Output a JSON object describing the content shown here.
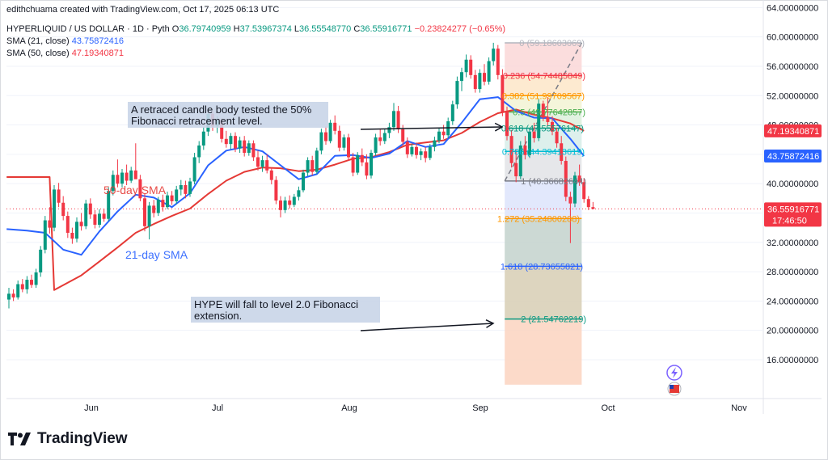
{
  "header": {
    "credit": "edithchuama created with TradingView.com, Oct 17, 2025 06:13 UTC",
    "symbol": "HYPERLIQUID / US DOLLAR · 1D · Pyth",
    "ohlc": {
      "o_label": "O",
      "o": "36.79740959",
      "h_label": "H",
      "h": "37.53967374",
      "l_label": "L",
      "l": "36.55548770",
      "c_label": "C",
      "c": "36.55916771",
      "change": "−0.23824277 (−0.65%)"
    },
    "sma21": {
      "label": "SMA (21, close)",
      "value": "43.75872416"
    },
    "sma50": {
      "label": "SMA (50, close)",
      "value": "47.19340871"
    }
  },
  "brand": {
    "name": "TradingView"
  },
  "colors": {
    "up": "#089981",
    "down": "#f23645",
    "sma21": "#2962ff",
    "sma50": "#e53935"
  },
  "chart_data": {
    "type": "candlestick",
    "y_range": [
      12,
      64
    ],
    "y_ticks": [
      "64.00000000",
      "60.00000000",
      "56.00000000",
      "52.00000000",
      "48.00000000",
      "44.00000000",
      "40.00000000",
      "36.00000000",
      "32.00000000",
      "28.00000000",
      "24.00000000",
      "20.00000000",
      "16.00000000"
    ],
    "x_ticks": [
      "Jun",
      "Jul",
      "Aug",
      "Sep",
      "Oct",
      "Nov"
    ],
    "price_tags": [
      {
        "text": "47.19340871",
        "price": 47.19,
        "color": "#f23645"
      },
      {
        "text": "43.75872416",
        "price": 43.76,
        "color": "#2962ff"
      },
      {
        "text": "36.55916771",
        "sub": "17:46:50",
        "price": 36.56,
        "color": "#f23645"
      }
    ],
    "close_price": 36.56,
    "candles": [
      {
        "o": 24.2,
        "h": 25.8,
        "l": 23.0,
        "c": 25.0
      },
      {
        "o": 25.0,
        "h": 25.6,
        "l": 24.0,
        "c": 24.5
      },
      {
        "o": 24.5,
        "h": 26.8,
        "l": 24.2,
        "c": 26.3
      },
      {
        "o": 26.3,
        "h": 27.0,
        "l": 25.2,
        "c": 25.6
      },
      {
        "o": 25.6,
        "h": 27.4,
        "l": 25.0,
        "c": 26.9
      },
      {
        "o": 26.9,
        "h": 27.6,
        "l": 25.8,
        "c": 26.2
      },
      {
        "o": 26.2,
        "h": 28.4,
        "l": 25.8,
        "c": 27.9
      },
      {
        "o": 27.9,
        "h": 31.5,
        "l": 27.3,
        "c": 31.0
      },
      {
        "o": 31.0,
        "h": 35.6,
        "l": 30.5,
        "c": 35.0
      },
      {
        "o": 35.0,
        "h": 36.8,
        "l": 33.2,
        "c": 34.0
      },
      {
        "o": 34.0,
        "h": 39.8,
        "l": 33.5,
        "c": 39.2
      },
      {
        "o": 39.2,
        "h": 40.1,
        "l": 36.8,
        "c": 37.4
      },
      {
        "o": 37.4,
        "h": 38.3,
        "l": 35.0,
        "c": 35.6
      },
      {
        "o": 35.6,
        "h": 36.2,
        "l": 32.6,
        "c": 33.3
      },
      {
        "o": 33.3,
        "h": 34.0,
        "l": 31.8,
        "c": 32.5
      },
      {
        "o": 32.5,
        "h": 35.4,
        "l": 32.0,
        "c": 34.8
      },
      {
        "o": 34.8,
        "h": 36.0,
        "l": 33.6,
        "c": 34.2
      },
      {
        "o": 34.2,
        "h": 37.8,
        "l": 33.8,
        "c": 37.3
      },
      {
        "o": 37.3,
        "h": 38.0,
        "l": 35.2,
        "c": 35.8
      },
      {
        "o": 35.8,
        "h": 36.4,
        "l": 33.9,
        "c": 34.4
      },
      {
        "o": 34.4,
        "h": 36.5,
        "l": 34.0,
        "c": 35.9
      },
      {
        "o": 35.9,
        "h": 36.6,
        "l": 34.8,
        "c": 35.2
      },
      {
        "o": 35.2,
        "h": 39.5,
        "l": 34.9,
        "c": 39.0
      },
      {
        "o": 39.0,
        "h": 41.8,
        "l": 38.4,
        "c": 41.2
      },
      {
        "o": 41.2,
        "h": 43.3,
        "l": 39.5,
        "c": 40.0
      },
      {
        "o": 40.0,
        "h": 42.0,
        "l": 39.5,
        "c": 41.5
      },
      {
        "o": 41.5,
        "h": 42.6,
        "l": 39.8,
        "c": 40.4
      },
      {
        "o": 40.4,
        "h": 42.3,
        "l": 40.1,
        "c": 41.8
      },
      {
        "o": 41.8,
        "h": 45.5,
        "l": 41.0,
        "c": 40.6
      },
      {
        "o": 40.6,
        "h": 41.2,
        "l": 37.6,
        "c": 38.0
      },
      {
        "o": 38.0,
        "h": 38.6,
        "l": 33.5,
        "c": 34.2
      },
      {
        "o": 34.2,
        "h": 37.5,
        "l": 32.4,
        "c": 37.0
      },
      {
        "o": 37.0,
        "h": 37.8,
        "l": 35.4,
        "c": 36.0
      },
      {
        "o": 36.0,
        "h": 38.2,
        "l": 35.6,
        "c": 37.8
      },
      {
        "o": 37.8,
        "h": 38.5,
        "l": 36.2,
        "c": 36.8
      },
      {
        "o": 36.8,
        "h": 38.9,
        "l": 36.5,
        "c": 38.4
      },
      {
        "o": 38.4,
        "h": 39.0,
        "l": 37.1,
        "c": 37.6
      },
      {
        "o": 37.6,
        "h": 39.7,
        "l": 37.2,
        "c": 39.2
      },
      {
        "o": 39.2,
        "h": 40.5,
        "l": 38.4,
        "c": 39.8
      },
      {
        "o": 39.8,
        "h": 40.4,
        "l": 38.0,
        "c": 38.6
      },
      {
        "o": 38.6,
        "h": 40.8,
        "l": 38.2,
        "c": 40.3
      },
      {
        "o": 40.3,
        "h": 44.2,
        "l": 39.9,
        "c": 43.6
      },
      {
        "o": 43.6,
        "h": 45.8,
        "l": 42.8,
        "c": 45.2
      },
      {
        "o": 45.2,
        "h": 47.7,
        "l": 44.6,
        "c": 47.1
      },
      {
        "o": 47.1,
        "h": 50.0,
        "l": 46.5,
        "c": 49.5
      },
      {
        "o": 49.5,
        "h": 49.9,
        "l": 47.2,
        "c": 47.8
      },
      {
        "o": 47.8,
        "h": 49.2,
        "l": 46.9,
        "c": 48.6
      },
      {
        "o": 48.6,
        "h": 48.9,
        "l": 45.6,
        "c": 46.1
      },
      {
        "o": 46.1,
        "h": 47.2,
        "l": 44.9,
        "c": 45.4
      },
      {
        "o": 45.4,
        "h": 46.9,
        "l": 44.7,
        "c": 46.5
      },
      {
        "o": 46.5,
        "h": 47.0,
        "l": 44.3,
        "c": 44.8
      },
      {
        "o": 44.8,
        "h": 46.4,
        "l": 44.2,
        "c": 45.9
      },
      {
        "o": 45.9,
        "h": 46.5,
        "l": 43.7,
        "c": 44.2
      },
      {
        "o": 44.2,
        "h": 45.9,
        "l": 43.8,
        "c": 45.5
      },
      {
        "o": 45.5,
        "h": 45.9,
        "l": 43.1,
        "c": 43.6
      },
      {
        "o": 43.6,
        "h": 44.5,
        "l": 41.8,
        "c": 42.3
      },
      {
        "o": 42.3,
        "h": 43.8,
        "l": 41.6,
        "c": 43.2
      },
      {
        "o": 43.2,
        "h": 44.0,
        "l": 41.4,
        "c": 41.8
      },
      {
        "o": 41.8,
        "h": 42.2,
        "l": 39.9,
        "c": 40.5
      },
      {
        "o": 40.5,
        "h": 41.0,
        "l": 37.2,
        "c": 37.7
      },
      {
        "o": 37.7,
        "h": 38.3,
        "l": 35.4,
        "c": 36.4
      },
      {
        "o": 36.4,
        "h": 38.2,
        "l": 36.0,
        "c": 37.7
      },
      {
        "o": 37.7,
        "h": 38.4,
        "l": 36.6,
        "c": 37.1
      },
      {
        "o": 37.1,
        "h": 38.6,
        "l": 36.8,
        "c": 38.2
      },
      {
        "o": 38.2,
        "h": 39.6,
        "l": 37.7,
        "c": 39.1
      },
      {
        "o": 39.1,
        "h": 41.9,
        "l": 38.8,
        "c": 41.5
      },
      {
        "o": 41.5,
        "h": 43.6,
        "l": 41.0,
        "c": 43.2
      },
      {
        "o": 43.2,
        "h": 43.8,
        "l": 41.1,
        "c": 41.6
      },
      {
        "o": 41.6,
        "h": 44.9,
        "l": 41.3,
        "c": 44.5
      },
      {
        "o": 44.5,
        "h": 47.5,
        "l": 44.0,
        "c": 47.0
      },
      {
        "o": 47.0,
        "h": 47.8,
        "l": 45.3,
        "c": 45.8
      },
      {
        "o": 45.8,
        "h": 48.7,
        "l": 45.5,
        "c": 48.3
      },
      {
        "o": 48.3,
        "h": 49.3,
        "l": 46.7,
        "c": 47.2
      },
      {
        "o": 47.2,
        "h": 47.9,
        "l": 44.4,
        "c": 44.9
      },
      {
        "o": 44.9,
        "h": 46.7,
        "l": 44.5,
        "c": 46.3
      },
      {
        "o": 46.3,
        "h": 46.8,
        "l": 43.1,
        "c": 43.6
      },
      {
        "o": 43.6,
        "h": 44.2,
        "l": 41.0,
        "c": 41.5
      },
      {
        "o": 41.5,
        "h": 44.3,
        "l": 41.2,
        "c": 43.9
      },
      {
        "o": 43.9,
        "h": 44.8,
        "l": 42.4,
        "c": 42.9
      },
      {
        "o": 42.9,
        "h": 44.0,
        "l": 40.6,
        "c": 41.1
      },
      {
        "o": 41.1,
        "h": 44.6,
        "l": 40.7,
        "c": 44.2
      },
      {
        "o": 44.2,
        "h": 46.8,
        "l": 43.8,
        "c": 46.3
      },
      {
        "o": 46.3,
        "h": 47.5,
        "l": 45.2,
        "c": 45.8
      },
      {
        "o": 45.8,
        "h": 47.4,
        "l": 45.4,
        "c": 46.9
      },
      {
        "o": 46.9,
        "h": 48.3,
        "l": 46.2,
        "c": 47.7
      },
      {
        "o": 47.7,
        "h": 51.0,
        "l": 47.2,
        "c": 49.9
      },
      {
        "o": 49.9,
        "h": 50.6,
        "l": 46.9,
        "c": 47.4
      },
      {
        "o": 47.4,
        "h": 48.0,
        "l": 45.2,
        "c": 45.7
      },
      {
        "o": 45.7,
        "h": 46.3,
        "l": 43.5,
        "c": 44.0
      },
      {
        "o": 44.0,
        "h": 45.4,
        "l": 43.7,
        "c": 45.0
      },
      {
        "o": 45.0,
        "h": 45.6,
        "l": 43.4,
        "c": 43.9
      },
      {
        "o": 43.9,
        "h": 44.8,
        "l": 43.2,
        "c": 44.4
      },
      {
        "o": 44.4,
        "h": 45.0,
        "l": 42.9,
        "c": 43.5
      },
      {
        "o": 43.5,
        "h": 45.4,
        "l": 43.2,
        "c": 45.0
      },
      {
        "o": 45.0,
        "h": 46.4,
        "l": 44.4,
        "c": 45.9
      },
      {
        "o": 45.9,
        "h": 47.6,
        "l": 45.5,
        "c": 47.1
      },
      {
        "o": 47.1,
        "h": 48.0,
        "l": 46.1,
        "c": 46.6
      },
      {
        "o": 46.6,
        "h": 49.0,
        "l": 46.2,
        "c": 48.5
      },
      {
        "o": 48.5,
        "h": 51.3,
        "l": 48.0,
        "c": 50.8
      },
      {
        "o": 50.8,
        "h": 54.6,
        "l": 50.2,
        "c": 54.0
      },
      {
        "o": 54.0,
        "h": 55.8,
        "l": 52.6,
        "c": 55.2
      },
      {
        "o": 55.2,
        "h": 57.6,
        "l": 54.5,
        "c": 56.9
      },
      {
        "o": 56.9,
        "h": 57.5,
        "l": 54.3,
        "c": 54.8
      },
      {
        "o": 54.8,
        "h": 55.5,
        "l": 52.4,
        "c": 52.9
      },
      {
        "o": 52.9,
        "h": 55.6,
        "l": 52.4,
        "c": 55.1
      },
      {
        "o": 55.1,
        "h": 56.3,
        "l": 53.4,
        "c": 53.9
      },
      {
        "o": 53.9,
        "h": 57.2,
        "l": 53.5,
        "c": 56.7
      },
      {
        "o": 56.7,
        "h": 59.2,
        "l": 56.1,
        "c": 58.4
      },
      {
        "o": 58.4,
        "h": 58.9,
        "l": 54.2,
        "c": 54.8
      },
      {
        "o": 54.8,
        "h": 55.6,
        "l": 49.2,
        "c": 49.8
      },
      {
        "o": 49.8,
        "h": 50.5,
        "l": 45.9,
        "c": 46.5
      },
      {
        "o": 46.5,
        "h": 47.3,
        "l": 42.2,
        "c": 42.8
      },
      {
        "o": 42.8,
        "h": 44.6,
        "l": 40.2,
        "c": 41.0
      },
      {
        "o": 41.0,
        "h": 45.8,
        "l": 40.6,
        "c": 45.2
      },
      {
        "o": 45.2,
        "h": 46.5,
        "l": 43.3,
        "c": 43.9
      },
      {
        "o": 43.9,
        "h": 47.6,
        "l": 43.5,
        "c": 47.1
      },
      {
        "o": 47.1,
        "h": 48.3,
        "l": 45.6,
        "c": 46.2
      },
      {
        "o": 46.2,
        "h": 51.5,
        "l": 45.8,
        "c": 50.9
      },
      {
        "o": 50.9,
        "h": 51.3,
        "l": 48.5,
        "c": 49.0
      },
      {
        "o": 49.0,
        "h": 51.8,
        "l": 47.9,
        "c": 48.4
      },
      {
        "o": 48.4,
        "h": 49.2,
        "l": 46.6,
        "c": 47.1
      },
      {
        "o": 47.1,
        "h": 47.6,
        "l": 44.9,
        "c": 45.5
      },
      {
        "o": 45.5,
        "h": 46.5,
        "l": 42.6,
        "c": 43.1
      },
      {
        "o": 43.1,
        "h": 43.7,
        "l": 37.6,
        "c": 38.2
      },
      {
        "o": 38.2,
        "h": 38.9,
        "l": 31.9,
        "c": 37.3
      },
      {
        "o": 37.3,
        "h": 41.6,
        "l": 36.8,
        "c": 41.1
      },
      {
        "o": 41.1,
        "h": 42.6,
        "l": 39.7,
        "c": 40.2
      },
      {
        "o": 40.2,
        "h": 40.7,
        "l": 37.4,
        "c": 37.9
      },
      {
        "o": 37.9,
        "h": 38.3,
        "l": 36.4,
        "c": 36.8
      },
      {
        "o": 36.8,
        "h": 37.5,
        "l": 36.5,
        "c": 36.56
      }
    ],
    "sma21": [
      [
        -0.5,
        33.8
      ],
      [
        4,
        33.6
      ],
      [
        8,
        33.3
      ],
      [
        12,
        31.0
      ],
      [
        16,
        30.3
      ],
      [
        20,
        33.5
      ],
      [
        24,
        36.2
      ],
      [
        28,
        38.5
      ],
      [
        32,
        38.1
      ],
      [
        36,
        36.8
      ],
      [
        40,
        38.7
      ],
      [
        44,
        42.5
      ],
      [
        48,
        44.5
      ],
      [
        52,
        45.0
      ],
      [
        56,
        44.4
      ],
      [
        60,
        42.5
      ],
      [
        64,
        40.6
      ],
      [
        68,
        41.3
      ],
      [
        72,
        43.8
      ],
      [
        76,
        43.9
      ],
      [
        80,
        43.5
      ],
      [
        84,
        44.1
      ],
      [
        88,
        45.8
      ],
      [
        92,
        45.0
      ],
      [
        96,
        45.4
      ],
      [
        100,
        48.3
      ],
      [
        104,
        51.5
      ],
      [
        108,
        51.8
      ],
      [
        112,
        49.9
      ],
      [
        116,
        49.0
      ],
      [
        120,
        48.9
      ],
      [
        124,
        46.1
      ],
      [
        127,
        43.76
      ]
    ],
    "sma50": [
      [
        -0.5,
        40.9
      ],
      [
        9,
        40.9
      ],
      [
        10,
        25.5
      ],
      [
        16,
        27.5
      ],
      [
        20,
        29.4
      ],
      [
        24,
        31.3
      ],
      [
        28,
        33.3
      ],
      [
        32,
        34.5
      ],
      [
        36,
        35.6
      ],
      [
        40,
        36.6
      ],
      [
        44,
        38.6
      ],
      [
        48,
        40.4
      ],
      [
        52,
        41.6
      ],
      [
        56,
        42.2
      ],
      [
        60,
        42.1
      ],
      [
        64,
        41.7
      ],
      [
        68,
        41.9
      ],
      [
        72,
        42.6
      ],
      [
        76,
        43.4
      ],
      [
        80,
        43.6
      ],
      [
        84,
        44.3
      ],
      [
        88,
        45.3
      ],
      [
        92,
        45.6
      ],
      [
        96,
        45.9
      ],
      [
        100,
        46.9
      ],
      [
        104,
        48.4
      ],
      [
        108,
        49.6
      ],
      [
        112,
        50.1
      ],
      [
        116,
        49.4
      ],
      [
        120,
        48.9
      ],
      [
        124,
        48.2
      ],
      [
        127,
        47.19
      ]
    ],
    "fibonacci": {
      "x_start": 109.5,
      "x_end": 126.5,
      "levels": [
        {
          "label": "0 (59.18603069)",
          "price": 59.186,
          "line": "#b2b5be",
          "fill": "#fad7d7"
        },
        {
          "label": "0.236 (54.74485849)",
          "price": 54.745,
          "line": "#f23645",
          "fill": "#fde6c8"
        },
        {
          "label": "0.382 (51.99709567)",
          "price": 51.997,
          "line": "#ff9800",
          "fill": "#f2f3d4"
        },
        {
          "label": "0.5 (49.77642857)",
          "price": 49.776,
          "line": "#4caf50",
          "fill": "#dcf0dc"
        },
        {
          "label": "0.618 (47.55576147)",
          "price": 47.556,
          "line": "#089981",
          "fill": "#d7ede9"
        },
        {
          "label": "0.786 (44.39413619)",
          "price": 44.394,
          "line": "#00bcd4",
          "fill": "#e2e3e6"
        },
        {
          "label": "1 (40.36682644)",
          "price": 40.367,
          "line": "#787b86",
          "fill": "#dde4fc"
        },
        {
          "label": "1.272 (35.24800288)",
          "price": 35.248,
          "line": "#ff9800",
          "fill": "#c3d2cc"
        },
        {
          "label": "1.618 (28.73655821)",
          "price": 28.737,
          "line": "#2962ff",
          "fill": "#d7ceb4"
        },
        {
          "label": "2 (21.54762219)",
          "price": 21.548,
          "line": "#089981",
          "fill": "#fbd3c0"
        }
      ],
      "bottom_price": 12.6,
      "trend": {
        "from": [
          109.5,
          40.37
        ],
        "to": [
          126.5,
          59.19
        ]
      }
    },
    "annotations": [
      {
        "name": "retracement-note",
        "lines": [
          "A retraced candle body tested the 50%",
          " Fibonacci retracement level."
        ]
      },
      {
        "name": "extension-note",
        "lines": [
          "HYPE will fall to level 2.0 Fibonacci",
          "extension."
        ]
      }
    ],
    "sma_labels": [
      {
        "name": "sma50-label",
        "text": "50-day SMA"
      },
      {
        "name": "sma21-label",
        "text": "21-day SMA"
      }
    ]
  }
}
